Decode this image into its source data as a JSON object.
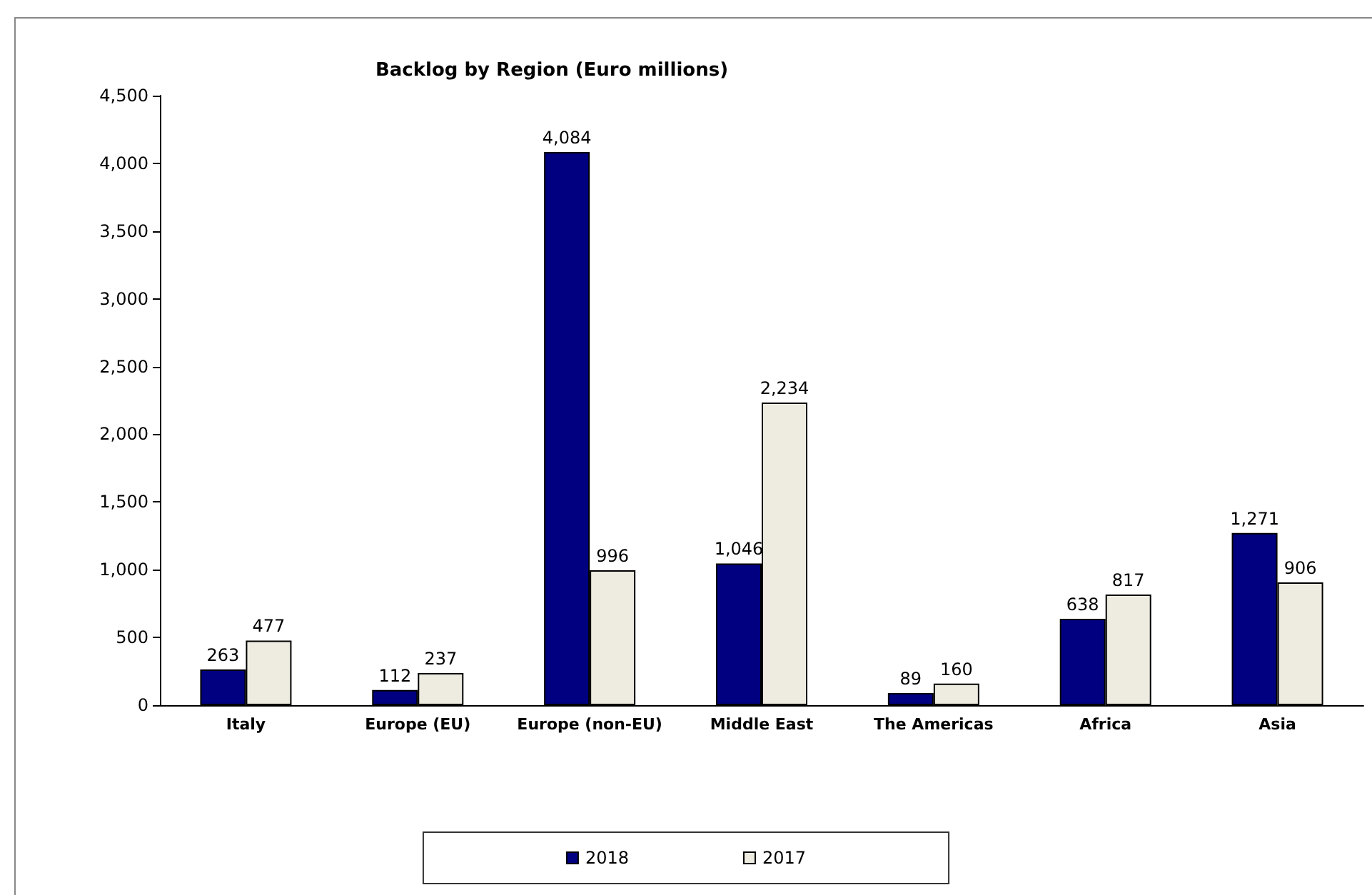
{
  "chart_data": {
    "type": "bar",
    "title": "Backlog by Region (Euro millions)",
    "categories": [
      "Italy",
      "Europe (EU)",
      "Europe (non-EU)",
      "Middle East",
      "The Americas",
      "Africa",
      "Asia"
    ],
    "series": [
      {
        "name": "2018",
        "color": "#000080",
        "values": [
          263,
          112,
          4084,
          1046,
          89,
          638,
          1271
        ],
        "value_labels": [
          "263",
          "112",
          "4,084",
          "1,046",
          "89",
          "638",
          "1,271"
        ]
      },
      {
        "name": "2017",
        "color": "#eeece1",
        "values": [
          477,
          237,
          996,
          2234,
          160,
          817,
          906
        ],
        "value_labels": [
          "477",
          "237",
          "996",
          "2,234",
          "160",
          "817",
          "906"
        ]
      }
    ],
    "ylim": [
      0,
      4500
    ],
    "yticks": [
      {
        "value": 0,
        "label": "0"
      },
      {
        "value": 500,
        "label": "500"
      },
      {
        "value": 1000,
        "label": "1,000"
      },
      {
        "value": 1500,
        "label": "1,500"
      },
      {
        "value": 2000,
        "label": "2,000"
      },
      {
        "value": 2500,
        "label": "2,500"
      },
      {
        "value": 3000,
        "label": "3,000"
      },
      {
        "value": 3500,
        "label": "3,500"
      },
      {
        "value": 4000,
        "label": "4,000"
      },
      {
        "value": 4500,
        "label": "4,500"
      }
    ],
    "legend": "bottom",
    "grid": false
  }
}
